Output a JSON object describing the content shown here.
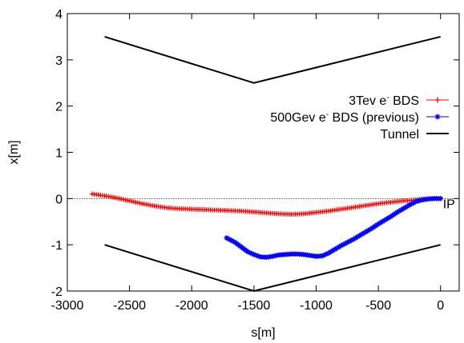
{
  "chart_data": {
    "type": "scatter",
    "xlabel": "s[m]",
    "ylabel": "x[m]",
    "xlim": [
      -3000,
      150
    ],
    "ylim": [
      -2,
      4
    ],
    "xticks": [
      -3000,
      -2500,
      -2000,
      -1500,
      -1000,
      -500,
      0
    ],
    "yticks": [
      -2,
      -1,
      0,
      1,
      2,
      3,
      4
    ],
    "grid": false,
    "legend_position": "right",
    "zero_line": true,
    "annotations": [
      {
        "text": "IP",
        "x": 0,
        "y": 0
      }
    ],
    "series": [
      {
        "name": "3Tev e- BDS",
        "name_base": "3Tev e",
        "name_sup": "-",
        "name_rest": " BDS",
        "color": "#ff0000",
        "marker": "plus",
        "x": [
          -2800,
          -2700,
          -2600,
          -2500,
          -2400,
          -2300,
          -2200,
          -2100,
          -2000,
          -1900,
          -1800,
          -1700,
          -1600,
          -1500,
          -1400,
          -1300,
          -1200,
          -1100,
          -1000,
          -900,
          -800,
          -700,
          -600,
          -500,
          -400,
          -300,
          -200,
          -150,
          -100,
          -50,
          0
        ],
        "y": [
          0.1,
          0.06,
          0.01,
          -0.05,
          -0.11,
          -0.16,
          -0.2,
          -0.22,
          -0.23,
          -0.24,
          -0.25,
          -0.26,
          -0.27,
          -0.29,
          -0.31,
          -0.33,
          -0.34,
          -0.33,
          -0.3,
          -0.27,
          -0.23,
          -0.19,
          -0.15,
          -0.11,
          -0.08,
          -0.05,
          -0.03,
          -0.01,
          0,
          0,
          0
        ]
      },
      {
        "name": "500Gev e- BDS (previous)",
        "name_base": "500Gev e",
        "name_sup": "-",
        "name_rest": " BDS (previous)",
        "color": "#0000ff",
        "marker": "star",
        "x": [
          -1720,
          -1650,
          -1600,
          -1550,
          -1500,
          -1450,
          -1400,
          -1350,
          -1300,
          -1250,
          -1200,
          -1150,
          -1100,
          -1050,
          -1000,
          -950,
          -900,
          -850,
          -800,
          -750,
          -700,
          -650,
          -600,
          -550,
          -500,
          -450,
          -400,
          -350,
          -300,
          -250,
          -200,
          -150,
          -100,
          -50,
          0
        ],
        "y": [
          -0.85,
          -0.95,
          -1.05,
          -1.15,
          -1.21,
          -1.26,
          -1.27,
          -1.25,
          -1.22,
          -1.21,
          -1.2,
          -1.2,
          -1.21,
          -1.23,
          -1.25,
          -1.24,
          -1.18,
          -1.1,
          -1.02,
          -0.95,
          -0.88,
          -0.8,
          -0.72,
          -0.64,
          -0.55,
          -0.47,
          -0.39,
          -0.3,
          -0.22,
          -0.14,
          -0.07,
          -0.03,
          -0.01,
          0,
          0
        ]
      },
      {
        "name": "Tunnel",
        "color": "#000000",
        "marker": "line",
        "segments": [
          {
            "x": [
              -2700,
              -1500,
              0
            ],
            "y": [
              3.5,
              2.5,
              3.5
            ]
          },
          {
            "x": [
              -2700,
              -1500,
              0
            ],
            "y": [
              -1.0,
              -2.0,
              -1.0
            ]
          }
        ]
      }
    ]
  }
}
